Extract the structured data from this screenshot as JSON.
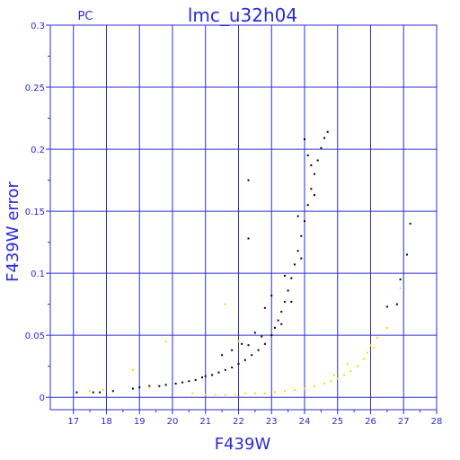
{
  "chart_data": {
    "type": "scatter",
    "title": "lmc_u32h04",
    "corner_label": "PC",
    "xlabel": "F439W",
    "ylabel": "F439W error",
    "xlim": [
      16.3,
      28.0
    ],
    "ylim": [
      -0.01,
      0.3
    ],
    "x_ticks": [
      17,
      18,
      19,
      20,
      21,
      22,
      23,
      24,
      25,
      26,
      27,
      28
    ],
    "y_ticks": [
      0,
      0.05,
      0.1,
      0.15,
      0.2,
      0.25,
      0.3
    ],
    "y_tick_labels": [
      "0",
      "0.05",
      "0.1",
      "0.15",
      "0.2",
      "0.25",
      "0.3"
    ],
    "grid": true,
    "colors": {
      "axis": "#2b2bd6",
      "series_black": "#000000",
      "series_yellow": "#f2e000"
    },
    "series": [
      {
        "color": "black",
        "points": [
          [
            17.1,
            0.004
          ],
          [
            17.6,
            0.004
          ],
          [
            17.8,
            0.004
          ],
          [
            18.2,
            0.005
          ],
          [
            18.8,
            0.007
          ],
          [
            19.0,
            0.008
          ],
          [
            19.3,
            0.009
          ],
          [
            19.6,
            0.009
          ],
          [
            19.8,
            0.01
          ],
          [
            20.1,
            0.011
          ],
          [
            20.3,
            0.012
          ],
          [
            20.5,
            0.013
          ],
          [
            20.7,
            0.014
          ],
          [
            20.9,
            0.016
          ],
          [
            21.0,
            0.017
          ],
          [
            21.2,
            0.018
          ],
          [
            21.4,
            0.02
          ],
          [
            21.6,
            0.022
          ],
          [
            21.8,
            0.024
          ],
          [
            22.0,
            0.027
          ],
          [
            22.2,
            0.03
          ],
          [
            22.4,
            0.034
          ],
          [
            22.6,
            0.038
          ],
          [
            22.8,
            0.043
          ],
          [
            23.0,
            0.05
          ],
          [
            23.1,
            0.056
          ],
          [
            23.2,
            0.062
          ],
          [
            23.3,
            0.069
          ],
          [
            23.4,
            0.077
          ],
          [
            23.5,
            0.086
          ],
          [
            23.6,
            0.096
          ],
          [
            23.7,
            0.107
          ],
          [
            23.8,
            0.118
          ],
          [
            23.9,
            0.13
          ],
          [
            24.0,
            0.142
          ],
          [
            24.1,
            0.155
          ],
          [
            24.2,
            0.168
          ],
          [
            24.3,
            0.18
          ],
          [
            24.4,
            0.191
          ],
          [
            24.5,
            0.201
          ],
          [
            24.6,
            0.209
          ],
          [
            24.7,
            0.214
          ],
          [
            22.3,
            0.128
          ],
          [
            22.3,
            0.175
          ],
          [
            24.1,
            0.195
          ],
          [
            24.0,
            0.208
          ],
          [
            24.2,
            0.187
          ],
          [
            23.8,
            0.146
          ],
          [
            23.4,
            0.098
          ],
          [
            23.0,
            0.082
          ],
          [
            22.8,
            0.072
          ],
          [
            22.5,
            0.052
          ],
          [
            21.8,
            0.038
          ],
          [
            21.5,
            0.034
          ],
          [
            26.8,
            0.075
          ],
          [
            27.1,
            0.115
          ],
          [
            27.2,
            0.14
          ],
          [
            26.9,
            0.095
          ],
          [
            26.5,
            0.073
          ],
          [
            22.1,
            0.043
          ],
          [
            22.3,
            0.042
          ],
          [
            22.7,
            0.049
          ],
          [
            23.3,
            0.059
          ],
          [
            23.6,
            0.077
          ],
          [
            23.9,
            0.112
          ],
          [
            24.3,
            0.163
          ]
        ]
      },
      {
        "color": "yellow",
        "points": [
          [
            17.5,
            0.005
          ],
          [
            17.9,
            0.006
          ],
          [
            18.8,
            0.022
          ],
          [
            19.3,
            0.008
          ],
          [
            19.8,
            0.045
          ],
          [
            20.6,
            0.003
          ],
          [
            21.0,
            0.002
          ],
          [
            21.3,
            0.002
          ],
          [
            21.6,
            0.002
          ],
          [
            21.9,
            0.002
          ],
          [
            22.2,
            0.003
          ],
          [
            22.5,
            0.003
          ],
          [
            22.8,
            0.003
          ],
          [
            23.1,
            0.004
          ],
          [
            23.4,
            0.005
          ],
          [
            23.7,
            0.006
          ],
          [
            24.0,
            0.007
          ],
          [
            24.3,
            0.009
          ],
          [
            24.6,
            0.011
          ],
          [
            24.8,
            0.013
          ],
          [
            25.0,
            0.015
          ],
          [
            25.2,
            0.018
          ],
          [
            25.4,
            0.021
          ],
          [
            25.6,
            0.025
          ],
          [
            25.8,
            0.031
          ],
          [
            25.9,
            0.036
          ],
          [
            26.0,
            0.042
          ],
          [
            26.2,
            0.048
          ],
          [
            26.5,
            0.056
          ],
          [
            26.9,
            0.088
          ],
          [
            21.6,
            0.075
          ],
          [
            22.0,
            0.045
          ],
          [
            24.9,
            0.018
          ],
          [
            25.3,
            0.027
          ],
          [
            26.1,
            0.04
          ]
        ]
      }
    ]
  }
}
